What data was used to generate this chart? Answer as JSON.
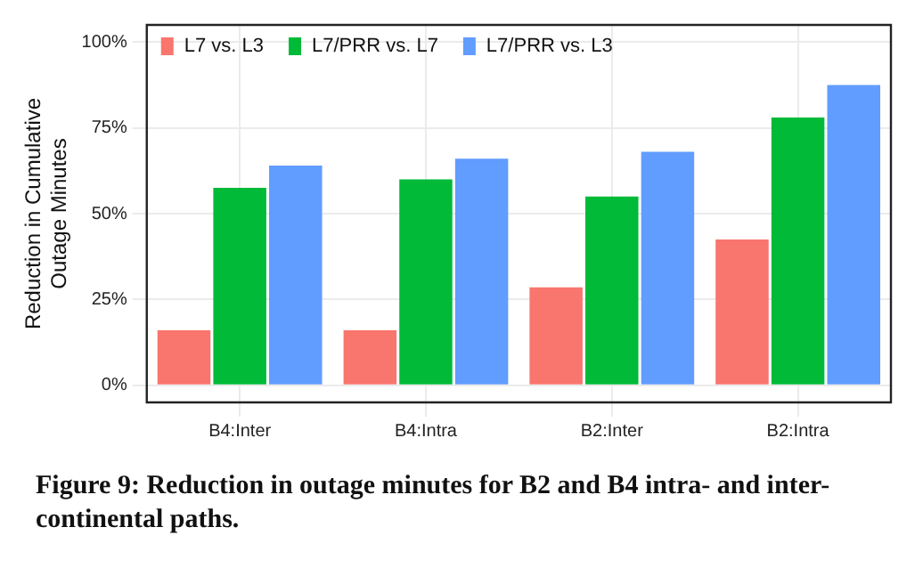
{
  "chart_data": {
    "type": "bar",
    "ylabel": "Reduction in Cumulative\nOutage Minutes",
    "categories": [
      "B4:Inter",
      "B4:Intra",
      "B2:Inter",
      "B2:Intra"
    ],
    "series": [
      {
        "name": "L7 vs. L3",
        "color": "#f8766d",
        "values": [
          16,
          16,
          28.5,
          42.5
        ]
      },
      {
        "name": "L7/PRR vs. L7",
        "color": "#00ba38",
        "values": [
          57.5,
          60,
          55,
          78
        ]
      },
      {
        "name": "L7/PRR vs. L3",
        "color": "#619cff",
        "values": [
          64,
          66,
          68,
          87.5
        ]
      }
    ],
    "ylim": [
      -5,
      105
    ],
    "yticks": [
      {
        "value": 0,
        "label": "0%"
      },
      {
        "value": 25,
        "label": "25%"
      },
      {
        "value": 50,
        "label": "50%"
      },
      {
        "value": 75,
        "label": "75%"
      },
      {
        "value": 100,
        "label": "100%"
      }
    ],
    "grid": true,
    "legend": "top left",
    "annotations": [
      "Figure 9: Reduction in outage minutes for B2 and B4 intra- and inter-continental paths."
    ]
  }
}
